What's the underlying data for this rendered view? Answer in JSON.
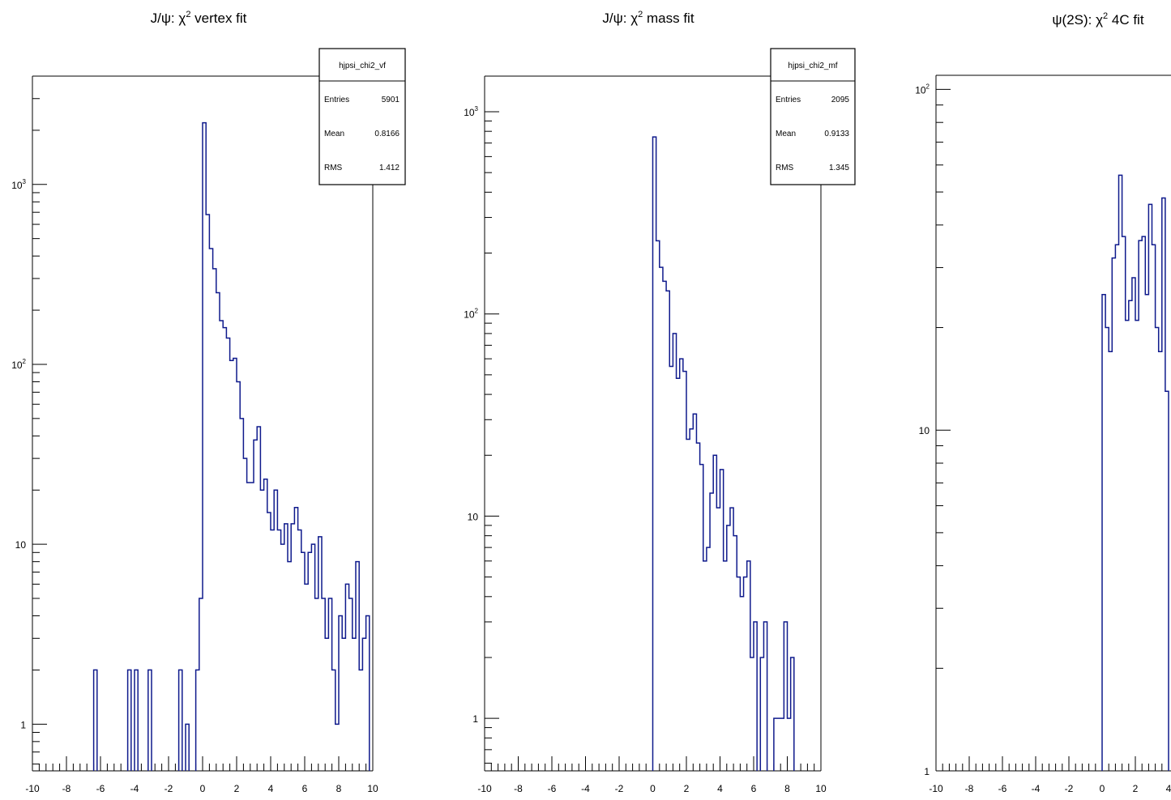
{
  "chart_data": [
    {
      "type": "histogram",
      "title_prefix": "J/ψ: χ",
      "title_sup": "2",
      "title_suffix": " vertex fit",
      "xlim": [
        -10,
        10
      ],
      "ylim": [
        0.55,
        4000
      ],
      "log_y": true,
      "line_color": "#0f1a8c",
      "x_ticks": [
        "-10",
        "-8",
        "-6",
        "-4",
        "-2",
        "0",
        "2",
        "4",
        "6",
        "8",
        "10"
      ],
      "y_ticks": [
        {
          "base": "1"
        },
        {
          "base": "10"
        },
        {
          "base": "10",
          "exp": "2"
        },
        {
          "base": "10",
          "exp": "3"
        }
      ],
      "stats": {
        "name": "hjpsi_chi2_vf",
        "rows": [
          [
            "Entries",
            "5901"
          ],
          [
            "Mean",
            "0.8166"
          ],
          [
            "RMS",
            "1.412"
          ]
        ]
      },
      "bins": [
        [
          -6.4,
          -6.2,
          2
        ],
        [
          -4.4,
          -4.2,
          2
        ],
        [
          -4.0,
          -3.8,
          2
        ],
        [
          -3.2,
          -3.0,
          2
        ],
        [
          -1.4,
          -1.2,
          2
        ],
        [
          -1.0,
          -0.8,
          1
        ],
        [
          -0.4,
          -0.2,
          2
        ],
        [
          -0.2,
          0.0,
          5
        ],
        [
          0.0,
          0.2,
          2200
        ],
        [
          0.2,
          0.4,
          680
        ],
        [
          0.4,
          0.6,
          440
        ],
        [
          0.6,
          0.8,
          340
        ],
        [
          0.8,
          1.0,
          250
        ],
        [
          1.0,
          1.2,
          175
        ],
        [
          1.2,
          1.4,
          160
        ],
        [
          1.4,
          1.6,
          140
        ],
        [
          1.6,
          1.8,
          105
        ],
        [
          1.8,
          2.0,
          108
        ],
        [
          2.0,
          2.2,
          80
        ],
        [
          2.2,
          2.4,
          50
        ],
        [
          2.4,
          2.6,
          30
        ],
        [
          2.6,
          2.8,
          22
        ],
        [
          2.8,
          3.0,
          22
        ],
        [
          3.0,
          3.2,
          38
        ],
        [
          3.2,
          3.4,
          45
        ],
        [
          3.4,
          3.6,
          20
        ],
        [
          3.6,
          3.8,
          23
        ],
        [
          3.8,
          4.0,
          15
        ],
        [
          4.0,
          4.2,
          12
        ],
        [
          4.2,
          4.4,
          20
        ],
        [
          4.4,
          4.6,
          12
        ],
        [
          4.6,
          4.8,
          10
        ],
        [
          4.8,
          5.0,
          13
        ],
        [
          5.0,
          5.2,
          8
        ],
        [
          5.2,
          5.4,
          13
        ],
        [
          5.4,
          5.6,
          16
        ],
        [
          5.6,
          5.8,
          12
        ],
        [
          5.8,
          6.0,
          9
        ],
        [
          6.0,
          6.2,
          6
        ],
        [
          6.2,
          6.4,
          9
        ],
        [
          6.4,
          6.6,
          10
        ],
        [
          6.6,
          6.8,
          5
        ],
        [
          6.8,
          7.0,
          11
        ],
        [
          7.0,
          7.2,
          5
        ],
        [
          7.2,
          7.4,
          3
        ],
        [
          7.4,
          7.6,
          5
        ],
        [
          7.6,
          7.8,
          2
        ],
        [
          7.8,
          8.0,
          1
        ],
        [
          8.0,
          8.2,
          4
        ],
        [
          8.2,
          8.4,
          3
        ],
        [
          8.4,
          8.6,
          6
        ],
        [
          8.6,
          8.8,
          5
        ],
        [
          8.8,
          9.0,
          3
        ],
        [
          9.0,
          9.2,
          8
        ],
        [
          9.2,
          9.4,
          2
        ],
        [
          9.4,
          9.6,
          3
        ],
        [
          9.6,
          9.8,
          4
        ]
      ]
    },
    {
      "type": "histogram",
      "title_prefix": "J/ψ: χ",
      "title_sup": "2",
      "title_suffix": " mass fit",
      "xlim": [
        -10,
        10
      ],
      "ylim": [
        0.55,
        1500
      ],
      "log_y": true,
      "line_color": "#0f1a8c",
      "x_ticks": [
        "-10",
        "-8",
        "-6",
        "-4",
        "-2",
        "0",
        "2",
        "4",
        "6",
        "8",
        "10"
      ],
      "y_ticks": [
        {
          "base": "1"
        },
        {
          "base": "10"
        },
        {
          "base": "10",
          "exp": "2"
        },
        {
          "base": "10",
          "exp": "3"
        }
      ],
      "stats": {
        "name": "hjpsi_chi2_mf",
        "rows": [
          [
            "Entries",
            "2095"
          ],
          [
            "Mean",
            "0.9133"
          ],
          [
            "RMS",
            "1.345"
          ]
        ]
      },
      "bins": [
        [
          0.0,
          0.2,
          750
        ],
        [
          0.2,
          0.4,
          230
        ],
        [
          0.4,
          0.6,
          170
        ],
        [
          0.6,
          0.8,
          145
        ],
        [
          0.8,
          1.0,
          130
        ],
        [
          1.0,
          1.2,
          55
        ],
        [
          1.2,
          1.4,
          80
        ],
        [
          1.4,
          1.6,
          48
        ],
        [
          1.6,
          1.8,
          60
        ],
        [
          1.8,
          2.0,
          52
        ],
        [
          2.0,
          2.2,
          24
        ],
        [
          2.2,
          2.4,
          27
        ],
        [
          2.4,
          2.6,
          32
        ],
        [
          2.6,
          2.8,
          23
        ],
        [
          2.8,
          3.0,
          18
        ],
        [
          3.0,
          3.2,
          6
        ],
        [
          3.2,
          3.4,
          7
        ],
        [
          3.4,
          3.6,
          13
        ],
        [
          3.6,
          3.8,
          20
        ],
        [
          3.8,
          4.0,
          11
        ],
        [
          4.0,
          4.2,
          17
        ],
        [
          4.2,
          4.4,
          6
        ],
        [
          4.4,
          4.6,
          9
        ],
        [
          4.6,
          4.8,
          11
        ],
        [
          4.8,
          5.0,
          8
        ],
        [
          5.0,
          5.2,
          5
        ],
        [
          5.2,
          5.4,
          4
        ],
        [
          5.4,
          5.6,
          5
        ],
        [
          5.6,
          5.8,
          6
        ],
        [
          5.8,
          6.0,
          2
        ],
        [
          6.0,
          6.2,
          3
        ],
        [
          6.4,
          6.6,
          2
        ],
        [
          6.6,
          6.8,
          3
        ],
        [
          7.2,
          7.4,
          1
        ],
        [
          7.4,
          7.6,
          1
        ],
        [
          7.6,
          7.8,
          1
        ],
        [
          7.8,
          8.0,
          3
        ],
        [
          8.0,
          8.2,
          1
        ],
        [
          8.2,
          8.4,
          2
        ]
      ]
    },
    {
      "type": "histogram",
      "title_prefix": "ψ(2S): χ",
      "title_sup": "2",
      "title_suffix": " 4C fit",
      "xlim": [
        -10,
        10
      ],
      "ylim": [
        1,
        110
      ],
      "log_y": true,
      "line_color": "#0f1a8c",
      "x_ticks": [
        "-10",
        "-8",
        "-6",
        "-4",
        "-2",
        "0",
        "2",
        "4"
      ],
      "y_ticks": [
        {
          "base": "1"
        },
        {
          "base": "10"
        },
        {
          "base": "10",
          "exp": "2"
        }
      ],
      "bins": [
        [
          0.0,
          0.2,
          25
        ],
        [
          0.2,
          0.4,
          20
        ],
        [
          0.4,
          0.6,
          17
        ],
        [
          0.6,
          0.8,
          32
        ],
        [
          0.8,
          1.0,
          35
        ],
        [
          1.0,
          1.2,
          56
        ],
        [
          1.2,
          1.4,
          37
        ],
        [
          1.4,
          1.6,
          21
        ],
        [
          1.6,
          1.8,
          24
        ],
        [
          1.8,
          2.0,
          28
        ],
        [
          2.0,
          2.2,
          21
        ],
        [
          2.2,
          2.4,
          36
        ],
        [
          2.4,
          2.6,
          37
        ],
        [
          2.6,
          2.8,
          25
        ],
        [
          2.8,
          3.0,
          46
        ],
        [
          3.0,
          3.2,
          35
        ],
        [
          3.2,
          3.4,
          20
        ],
        [
          3.4,
          3.6,
          17
        ],
        [
          3.6,
          3.8,
          48
        ],
        [
          3.8,
          4.0,
          13
        ]
      ]
    }
  ]
}
